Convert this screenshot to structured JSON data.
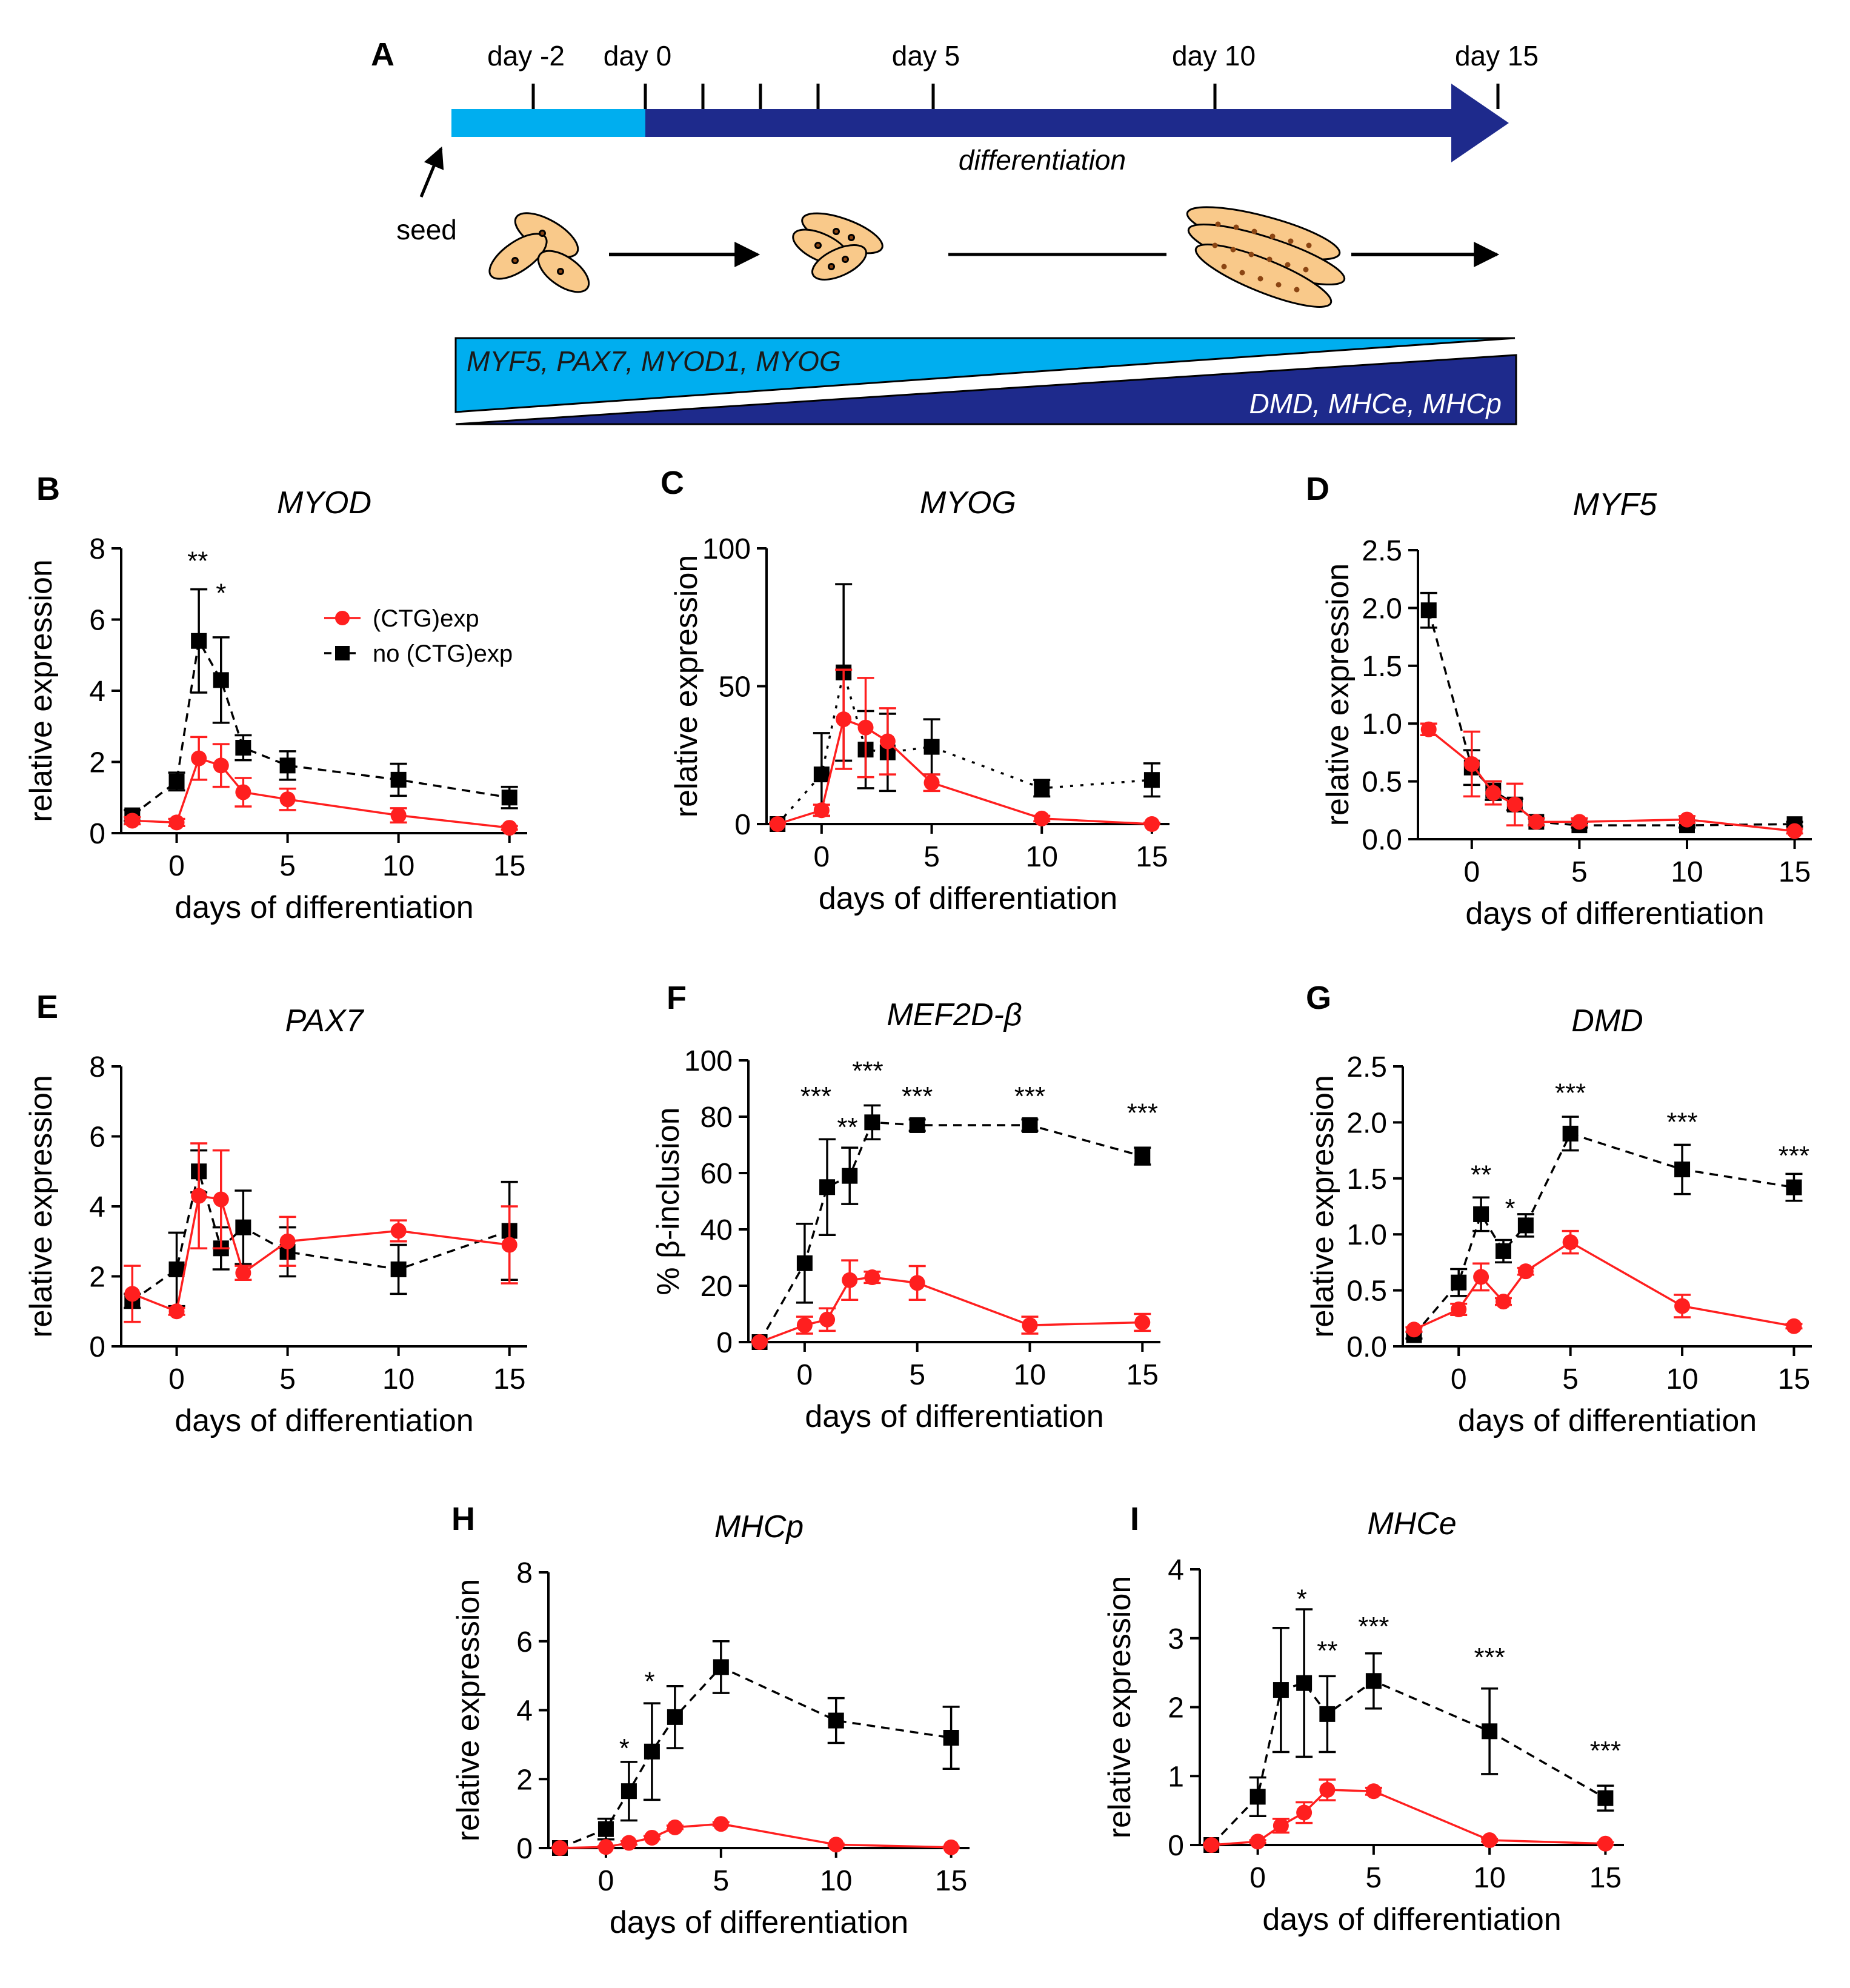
{
  "panel_letters": [
    "A",
    "B",
    "C",
    "D",
    "E",
    "F",
    "G",
    "H",
    "I"
  ],
  "colors": {
    "diff_red": "#ff1f1f",
    "no_exp_black": "#000000",
    "timeline_light": "#00aeef",
    "timeline_dark": "#1e2a8c",
    "cell_fill": "#f9c98a"
  },
  "schematic": {
    "timeline_labels": [
      "day -2",
      "day 0",
      "day 5",
      "day 10",
      "day 15"
    ],
    "timeline_ticks_days": [
      -2,
      0,
      1,
      2,
      3,
      5,
      10,
      15
    ],
    "bar_label": "differentiation",
    "seed_label": "seed",
    "early_markers": "MYF5, PAX7, MYOD1, MYOG",
    "late_markers": "DMD, MHCe, MHCp"
  },
  "legend": {
    "exp": "(CTG)exp",
    "noexp": "no (CTG)exp"
  },
  "common_xlabel": "days of differentiation",
  "chart_data": [
    {
      "panel": "B",
      "type": "line",
      "title": "MYOD",
      "xlabel": "days of differentiation",
      "ylabel": "relative expression",
      "x": [
        -2,
        0,
        1,
        2,
        3,
        5,
        10,
        15
      ],
      "xticks": [
        0,
        5,
        10,
        15
      ],
      "xlim": [
        -2.5,
        15.8
      ],
      "yticks": [
        0,
        2,
        4,
        6,
        8
      ],
      "ytick_labels": [
        "0",
        "2",
        "4",
        "6",
        "8"
      ],
      "ylim": [
        0,
        8
      ],
      "series": [
        {
          "name": "(CTG)exp",
          "values": [
            0.35,
            0.3,
            2.1,
            1.9,
            1.15,
            0.95,
            0.5,
            0.15
          ],
          "errors": [
            0.1,
            0.1,
            0.6,
            0.6,
            0.4,
            0.3,
            0.2,
            0.05
          ]
        },
        {
          "name": "no (CTG)exp",
          "values": [
            0.5,
            1.45,
            5.4,
            4.3,
            2.4,
            1.9,
            1.5,
            1.0
          ],
          "errors": [
            0.15,
            0.25,
            1.45,
            1.2,
            0.35,
            0.4,
            0.45,
            0.3
          ]
        }
      ],
      "annotations": [
        {
          "x": 0.95,
          "y": 7.7,
          "text": "**"
        },
        {
          "x": 2,
          "y": 6.8,
          "text": "*"
        }
      ]
    },
    {
      "panel": "C",
      "type": "line",
      "title": "MYOG",
      "xlabel": "days of differentiation",
      "ylabel": "relative expression",
      "x": [
        -2,
        0,
        1,
        2,
        3,
        5,
        10,
        15
      ],
      "xticks": [
        0,
        5,
        10,
        15
      ],
      "xlim": [
        -2.5,
        15.8
      ],
      "yticks": [
        0,
        50,
        100
      ],
      "ytick_labels": [
        "0",
        "50",
        "100"
      ],
      "ylim": [
        0,
        100
      ],
      "series": [
        {
          "name": "(CTG)exp",
          "values": [
            0,
            5,
            38,
            35,
            30,
            15,
            2,
            0
          ],
          "errors": [
            0.5,
            2,
            18,
            18,
            12,
            3,
            1,
            0.5
          ]
        },
        {
          "name": "no (CTG)exp",
          "values": [
            0,
            18,
            55,
            27,
            26,
            28,
            13,
            16
          ],
          "errors": [
            0.5,
            15,
            32,
            14,
            14,
            10,
            3,
            6
          ]
        }
      ],
      "annotations": []
    },
    {
      "panel": "D",
      "type": "line",
      "title": "MYF5",
      "xlabel": "days of differentiation",
      "ylabel": "relative expression",
      "x": [
        -2,
        0,
        1,
        2,
        3,
        5,
        10,
        15
      ],
      "xticks": [
        0,
        5,
        10,
        15
      ],
      "xlim": [
        -2.5,
        15.8
      ],
      "yticks": [
        0,
        0.5,
        1,
        1.5,
        2,
        2.5
      ],
      "ytick_labels": [
        "0.0",
        "0.5",
        "1.0",
        "1.5",
        "2.0",
        "2.5"
      ],
      "ylim": [
        0,
        2.5
      ],
      "series": [
        {
          "name": "(CTG)exp",
          "values": [
            0.95,
            0.65,
            0.4,
            0.3,
            0.15,
            0.15,
            0.17,
            0.07
          ],
          "errors": [
            0.05,
            0.28,
            0.1,
            0.18,
            0.03,
            0.03,
            0.03,
            0.02
          ]
        },
        {
          "name": "no (CTG)exp",
          "values": [
            1.98,
            0.62,
            0.42,
            0.3,
            0.15,
            0.12,
            0.12,
            0.13
          ],
          "errors": [
            0.15,
            0.15,
            0.08,
            0.05,
            0.03,
            0.02,
            0.02,
            0.02
          ]
        }
      ],
      "annotations": []
    },
    {
      "panel": "E",
      "type": "line",
      "title": "PAX7",
      "xlabel": "days of differentiation",
      "ylabel": "relative expression",
      "x": [
        -2,
        0,
        1,
        2,
        3,
        5,
        10,
        15
      ],
      "xticks": [
        0,
        5,
        10,
        15
      ],
      "xlim": [
        -2.5,
        15.8
      ],
      "yticks": [
        0,
        2,
        4,
        6,
        8
      ],
      "ytick_labels": [
        "0",
        "2",
        "4",
        "6",
        "8"
      ],
      "ylim": [
        0,
        8
      ],
      "series": [
        {
          "name": "(CTG)exp",
          "values": [
            1.5,
            1.0,
            4.3,
            4.2,
            2.1,
            3.0,
            3.3,
            2.9
          ],
          "errors": [
            0.8,
            0.1,
            1.5,
            1.4,
            0.2,
            0.7,
            0.3,
            1.1
          ]
        },
        {
          "name": "no (CTG)exp",
          "values": [
            1.3,
            2.2,
            5.0,
            2.8,
            3.4,
            2.7,
            2.2,
            3.3
          ],
          "errors": [
            0.2,
            1.05,
            0.6,
            0.6,
            1.05,
            0.7,
            0.7,
            1.4
          ]
        }
      ],
      "annotations": []
    },
    {
      "panel": "F",
      "type": "line",
      "title": "MEF2D-β",
      "xlabel": "days of differentiation",
      "ylabel": "% β-inclusion",
      "x": [
        -2,
        0,
        1,
        2,
        3,
        5,
        10,
        15
      ],
      "xticks": [
        0,
        5,
        10,
        15
      ],
      "xlim": [
        -2.5,
        15.8
      ],
      "yticks": [
        0,
        20,
        40,
        60,
        80,
        100
      ],
      "ytick_labels": [
        "0",
        "20",
        "40",
        "60",
        "80",
        "100"
      ],
      "ylim": [
        0,
        100
      ],
      "series": [
        {
          "name": "(CTG)exp",
          "values": [
            0,
            6,
            8,
            22,
            23,
            21,
            6,
            7
          ],
          "errors": [
            0.5,
            3,
            4,
            7,
            2,
            6,
            3,
            3
          ]
        },
        {
          "name": "no (CTG)exp",
          "values": [
            0,
            28,
            55,
            59,
            78,
            77,
            77,
            66
          ],
          "errors": [
            0.5,
            14,
            17,
            10,
            6,
            2,
            2,
            3
          ]
        }
      ],
      "annotations": [
        {
          "x": 0.5,
          "y": 88,
          "text": "***"
        },
        {
          "x": 1.9,
          "y": 77,
          "text": "**"
        },
        {
          "x": 2.8,
          "y": 97,
          "text": "***"
        },
        {
          "x": 5,
          "y": 88,
          "text": "***"
        },
        {
          "x": 10,
          "y": 88,
          "text": "***"
        },
        {
          "x": 15,
          "y": 82,
          "text": "***"
        }
      ]
    },
    {
      "panel": "G",
      "type": "line",
      "title": "DMD",
      "xlabel": "days of differentiation",
      "ylabel": "relative expression",
      "x": [
        -2,
        0,
        1,
        2,
        3,
        5,
        10,
        15
      ],
      "xticks": [
        0,
        5,
        10,
        15
      ],
      "xlim": [
        -2.5,
        15.8
      ],
      "yticks": [
        0,
        0.5,
        1,
        1.5,
        2,
        2.5
      ],
      "ytick_labels": [
        "0.0",
        "0.5",
        "1.0",
        "1.5",
        "2.0",
        "2.5"
      ],
      "ylim": [
        0,
        2.5
      ],
      "series": [
        {
          "name": "(CTG)exp",
          "values": [
            0.15,
            0.33,
            0.62,
            0.4,
            0.67,
            0.93,
            0.36,
            0.18
          ],
          "errors": [
            0.02,
            0.05,
            0.12,
            0.03,
            0.03,
            0.1,
            0.1,
            0.02
          ]
        },
        {
          "name": "no (CTG)exp",
          "values": [
            0.1,
            0.57,
            1.18,
            0.85,
            1.08,
            1.9,
            1.58,
            1.42
          ],
          "errors": [
            0.03,
            0.12,
            0.15,
            0.1,
            0.1,
            0.15,
            0.22,
            0.12
          ]
        }
      ],
      "annotations": [
        {
          "x": 1,
          "y": 1.55,
          "text": "**"
        },
        {
          "x": 2.3,
          "y": 1.25,
          "text": "*"
        },
        {
          "x": 5,
          "y": 2.28,
          "text": "***"
        },
        {
          "x": 10,
          "y": 2.02,
          "text": "***"
        },
        {
          "x": 15,
          "y": 1.72,
          "text": "***"
        }
      ]
    },
    {
      "panel": "H",
      "type": "line",
      "title": "MHCp",
      "xlabel": "days of differentiation",
      "ylabel": "relative expression",
      "x": [
        -2,
        0,
        1,
        2,
        3,
        5,
        10,
        15
      ],
      "xticks": [
        0,
        5,
        10,
        15
      ],
      "xlim": [
        -2.5,
        15.8
      ],
      "yticks": [
        0,
        2,
        4,
        6,
        8
      ],
      "ytick_labels": [
        "0",
        "2",
        "4",
        "6",
        "8"
      ],
      "ylim": [
        0,
        8
      ],
      "series": [
        {
          "name": "(CTG)exp",
          "values": [
            0,
            0.03,
            0.15,
            0.3,
            0.6,
            0.7,
            0.1,
            0.02
          ],
          "errors": [
            0.02,
            0.02,
            0.05,
            0.05,
            0.05,
            0.05,
            0.03,
            0.02
          ]
        },
        {
          "name": "no (CTG)exp",
          "values": [
            0,
            0.55,
            1.65,
            2.8,
            3.8,
            5.25,
            3.7,
            3.2
          ],
          "errors": [
            0.02,
            0.3,
            0.85,
            1.4,
            0.9,
            0.75,
            0.65,
            0.9
          ]
        }
      ],
      "annotations": [
        {
          "x": 0.8,
          "y": 2.95,
          "text": "*"
        },
        {
          "x": 1.9,
          "y": 4.9,
          "text": "*"
        }
      ]
    },
    {
      "panel": "I",
      "type": "line",
      "title": "MHCe",
      "xlabel": "days of differentiation",
      "ylabel": "relative expression",
      "x": [
        -2,
        0,
        1,
        2,
        3,
        5,
        10,
        15
      ],
      "xticks": [
        0,
        5,
        10,
        15
      ],
      "xlim": [
        -2.5,
        15.8
      ],
      "yticks": [
        0,
        1,
        2,
        3,
        4
      ],
      "ytick_labels": [
        "0",
        "1",
        "2",
        "3",
        "4"
      ],
      "ylim": [
        0,
        4
      ],
      "series": [
        {
          "name": "(CTG)exp",
          "values": [
            0,
            0.05,
            0.28,
            0.47,
            0.8,
            0.78,
            0.07,
            0.02
          ],
          "errors": [
            0.02,
            0.02,
            0.1,
            0.15,
            0.15,
            0.05,
            0.02,
            0.02
          ]
        },
        {
          "name": "no (CTG)exp",
          "values": [
            0,
            0.7,
            2.25,
            2.35,
            1.9,
            2.38,
            1.65,
            0.68
          ],
          "errors": [
            0.02,
            0.28,
            0.9,
            1.07,
            0.55,
            0.4,
            0.62,
            0.18
          ]
        }
      ],
      "annotations": [
        {
          "x": 1.9,
          "y": 3.6,
          "text": "*"
        },
        {
          "x": 3,
          "y": 2.85,
          "text": "**"
        },
        {
          "x": 5,
          "y": 3.2,
          "text": "***"
        },
        {
          "x": 10,
          "y": 2.75,
          "text": "***"
        },
        {
          "x": 15,
          "y": 1.4,
          "text": "***"
        }
      ]
    }
  ]
}
